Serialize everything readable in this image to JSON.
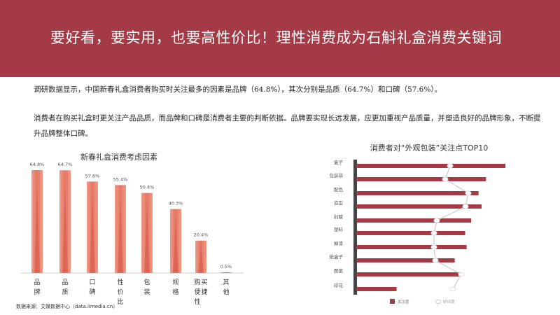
{
  "header": {
    "title": "要好看，要实用，也要高性价比！理性消费成为石斛礼盒消费关键词"
  },
  "body": {
    "paragraph1": "调研数据显示，中国新春礼盒消费者购买时关注最多的因素是品牌（64.8%），其次分别是品质（64.7%）和口碑（57.6%）。",
    "paragraph2": "消费者在购买礼盒时更关注产品品质，而品牌和口碑是消费者主要的判断依据。品牌要实现长远发展，应更加重视产品质量，并塑造良好的品牌形象，不断提升品牌整体口碑。"
  },
  "source": "数据来源：艾媒数据中心（data.iimedia.cn）",
  "colors": {
    "banner": "#a43a46",
    "bar_left": "#e8806e",
    "bar_right": "#a43a46",
    "axis": "#444444",
    "line": "#cccccc"
  },
  "chart_data": [
    {
      "type": "bar",
      "title": "新春礼盒消费考虑因素",
      "categories": [
        "品牌",
        "品质",
        "口碑",
        "性价比",
        "包装",
        "规格",
        "购买便捷性",
        "其他"
      ],
      "values": [
        64.8,
        64.7,
        57.6,
        55.4,
        50.4,
        40.3,
        20.4,
        0.5
      ],
      "data_labels": [
        "64.8%",
        "64.7%",
        "57.6%",
        "55.4%",
        "50.4%",
        "40.3%",
        "20.4%",
        "0.5%"
      ],
      "ylim": [
        0,
        70
      ],
      "grid": false
    },
    {
      "type": "bar",
      "orientation": "horizontal",
      "title": "消费者对“外观包装”关注点TOP10",
      "categories": [
        "盒子",
        "包装袋",
        "配色",
        "造型",
        "封膜",
        "塑料",
        "掉漆",
        "纸盒子",
        "图案",
        "印花"
      ],
      "series": [
        {
          "name": "关注度",
          "type": "bar",
          "values": [
            100,
            87,
            82,
            84,
            77,
            73,
            74,
            66,
            71,
            27
          ]
        },
        {
          "name": "好评度",
          "type": "line",
          "values": [
            66,
            63,
            79,
            77,
            57,
            55,
            55,
            56,
            74,
            68
          ]
        }
      ],
      "xlim": [
        0,
        100
      ],
      "legend": "bottom",
      "grid": false
    }
  ]
}
